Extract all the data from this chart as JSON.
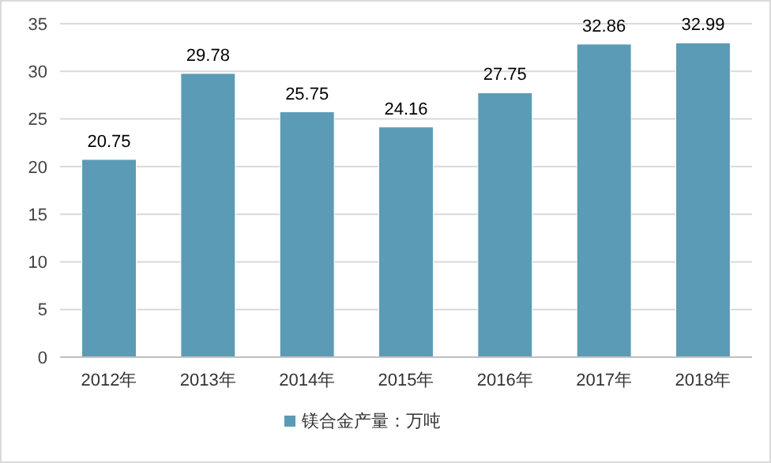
{
  "chart_data": {
    "type": "bar",
    "categories": [
      "2012年",
      "2013年",
      "2014年",
      "2015年",
      "2016年",
      "2017年",
      "2018年"
    ],
    "series": [
      {
        "name": "镁合金产量：万吨",
        "color": "#5b9bb5",
        "values": [
          20.75,
          29.78,
          25.75,
          24.16,
          27.75,
          32.86,
          32.99
        ]
      }
    ],
    "ylim": [
      0,
      35
    ],
    "yticks": [
      0,
      5,
      10,
      15,
      20,
      25,
      30,
      35
    ],
    "grid": "y",
    "legend": "bottom",
    "data_labels": true
  }
}
